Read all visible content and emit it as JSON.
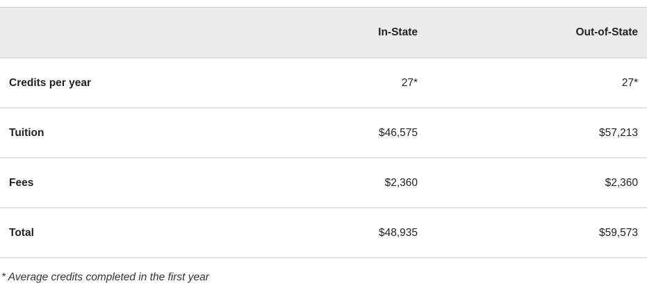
{
  "table": {
    "headers": [
      "",
      "In-State",
      "Out-of-State"
    ],
    "rows": [
      {
        "label": "Credits per year",
        "in_state": "27*",
        "out_of_state": "27*"
      },
      {
        "label": "Tuition",
        "in_state": "$46,575",
        "out_of_state": "$57,213"
      },
      {
        "label": "Fees",
        "in_state": "$2,360",
        "out_of_state": "$2,360"
      },
      {
        "label": "Total",
        "in_state": "$48,935",
        "out_of_state": "$59,573"
      }
    ]
  },
  "footnote": "* Average credits completed in the first year",
  "colors": {
    "header_bg": "#ebebeb",
    "border": "#cfcfcf",
    "text": "#222222"
  }
}
